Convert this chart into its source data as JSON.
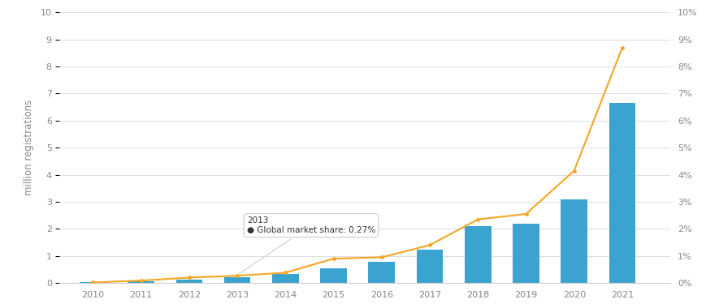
{
  "years": [
    2010,
    2011,
    2012,
    2013,
    2014,
    2015,
    2016,
    2017,
    2018,
    2019,
    2020,
    2021
  ],
  "bar_values": [
    0.02,
    0.05,
    0.12,
    0.2,
    0.32,
    0.55,
    0.77,
    1.23,
    2.1,
    2.2,
    3.1,
    6.65
  ],
  "line_values": [
    0.02,
    0.09,
    0.2,
    0.27,
    0.38,
    0.9,
    0.95,
    1.4,
    2.35,
    2.55,
    4.15,
    8.7
  ],
  "bar_color": "#3BA3D0",
  "line_color": "#F5A623",
  "background_color": "#ffffff",
  "grid_color": "#d0d0d0",
  "ylabel_left": "million registrations",
  "ylim_left": [
    0,
    10
  ],
  "ylim_right": [
    0,
    10
  ],
  "yticks_left": [
    0,
    1,
    2,
    3,
    4,
    5,
    6,
    7,
    8,
    9,
    10
  ],
  "yticks_right_labels": [
    "0%",
    "1%",
    "2%",
    "3%",
    "4%",
    "5%",
    "6%",
    "7%",
    "8%",
    "9%",
    "10%"
  ],
  "legend_year": "2013",
  "legend_label": "Global market share: 0.27%",
  "xlim": [
    2009.3,
    2022.0
  ]
}
